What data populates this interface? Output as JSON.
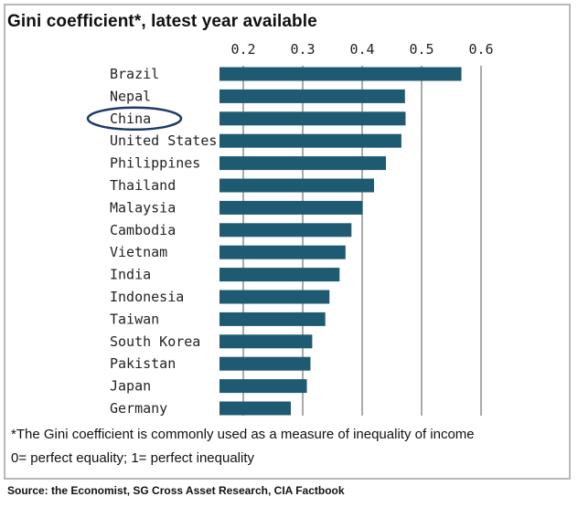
{
  "title": "Gini coefficient*, latest year available",
  "footnote": "*The Gini coefficient is commonly used as a measure of inequality of income",
  "scale_note": "0= perfect equality; 1= perfect inequality",
  "source": "Source: the Economist, SG Cross Asset Research, CIA Factbook",
  "colors": {
    "bar": "#1f5a73",
    "highlight_circle": "#1d3a66"
  },
  "chart_data": {
    "type": "bar",
    "orientation": "horizontal",
    "title": "Gini coefficient*, latest year available",
    "xlim": [
      0.2,
      0.6
    ],
    "xticks": [
      0.2,
      0.3,
      0.4,
      0.5,
      0.6
    ],
    "xtick_labels": [
      "0.2",
      "0.3",
      "0.4",
      "0.5",
      "0.6"
    ],
    "axis_position": "top",
    "grid": true,
    "bar_start": 0.16,
    "categories": [
      "Brazil",
      "Nepal",
      "China",
      "United States",
      "Philippines",
      "Thailand",
      "Malaysia",
      "Cambodia",
      "Vietnam",
      "India",
      "Indonesia",
      "Taiwan",
      "South Korea",
      "Pakistan",
      "Japan",
      "Germany"
    ],
    "values": [
      0.567,
      0.472,
      0.473,
      0.466,
      0.44,
      0.42,
      0.401,
      0.382,
      0.372,
      0.362,
      0.345,
      0.338,
      0.316,
      0.313,
      0.307,
      0.28
    ],
    "highlighted": "China"
  }
}
